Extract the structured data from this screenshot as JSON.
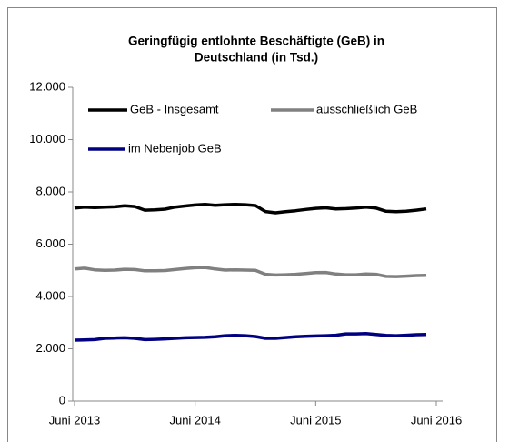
{
  "chart_data": {
    "type": "line",
    "title": [
      "Geringfügig entlohnte Beschäftigte  (GeB) in",
      "Deutschland (in Tsd.)"
    ],
    "categories": [
      "Juni 2013",
      null,
      null,
      null,
      null,
      null,
      null,
      null,
      null,
      null,
      null,
      null,
      "Juni 2014",
      null,
      null,
      null,
      null,
      null,
      null,
      null,
      null,
      null,
      null,
      null,
      "Juni 2015",
      null,
      null,
      null,
      null,
      null,
      null,
      null,
      null,
      null,
      null,
      null,
      "Juni 2016"
    ],
    "series": [
      {
        "name": "GeB - Insgesamt",
        "color": "#000000",
        "values": [
          7380,
          7420,
          7400,
          7420,
          7430,
          7470,
          7440,
          7300,
          7310,
          7340,
          7420,
          7460,
          7500,
          7520,
          7490,
          7510,
          7520,
          7510,
          7480,
          7250,
          7200,
          7240,
          7280,
          7330,
          7370,
          7390,
          7350,
          7360,
          7380,
          7420,
          7380,
          7260,
          7240,
          7260,
          7300,
          7350,
          null
        ]
      },
      {
        "name": "ausschließlich GeB",
        "color": "#808080",
        "values": [
          5050,
          5080,
          5020,
          5000,
          5010,
          5040,
          5030,
          4980,
          4980,
          4990,
          5030,
          5070,
          5100,
          5110,
          5050,
          5010,
          5020,
          5010,
          5000,
          4850,
          4820,
          4830,
          4850,
          4880,
          4910,
          4920,
          4860,
          4830,
          4830,
          4860,
          4850,
          4770,
          4760,
          4780,
          4800,
          4810,
          null
        ]
      },
      {
        "name": "im Nebenjob GeB",
        "color": "#000080",
        "values": [
          2330,
          2340,
          2350,
          2400,
          2410,
          2420,
          2400,
          2350,
          2360,
          2380,
          2400,
          2420,
          2430,
          2440,
          2460,
          2500,
          2510,
          2500,
          2470,
          2400,
          2400,
          2430,
          2460,
          2480,
          2490,
          2500,
          2520,
          2570,
          2570,
          2580,
          2550,
          2510,
          2500,
          2520,
          2540,
          2550,
          null
        ]
      }
    ],
    "ylim": [
      0,
      12000
    ],
    "yticks": [
      0,
      {
        "value": 2000,
        "label": "2.000"
      },
      {
        "value": 4000,
        "label": "4.000"
      },
      {
        "value": 6000,
        "label": "6.000"
      },
      {
        "value": 8000,
        "label": "8.000"
      },
      {
        "value": 10000,
        "label": "10.000"
      },
      {
        "value": 12000,
        "label": "12.000"
      }
    ],
    "grid": false
  }
}
